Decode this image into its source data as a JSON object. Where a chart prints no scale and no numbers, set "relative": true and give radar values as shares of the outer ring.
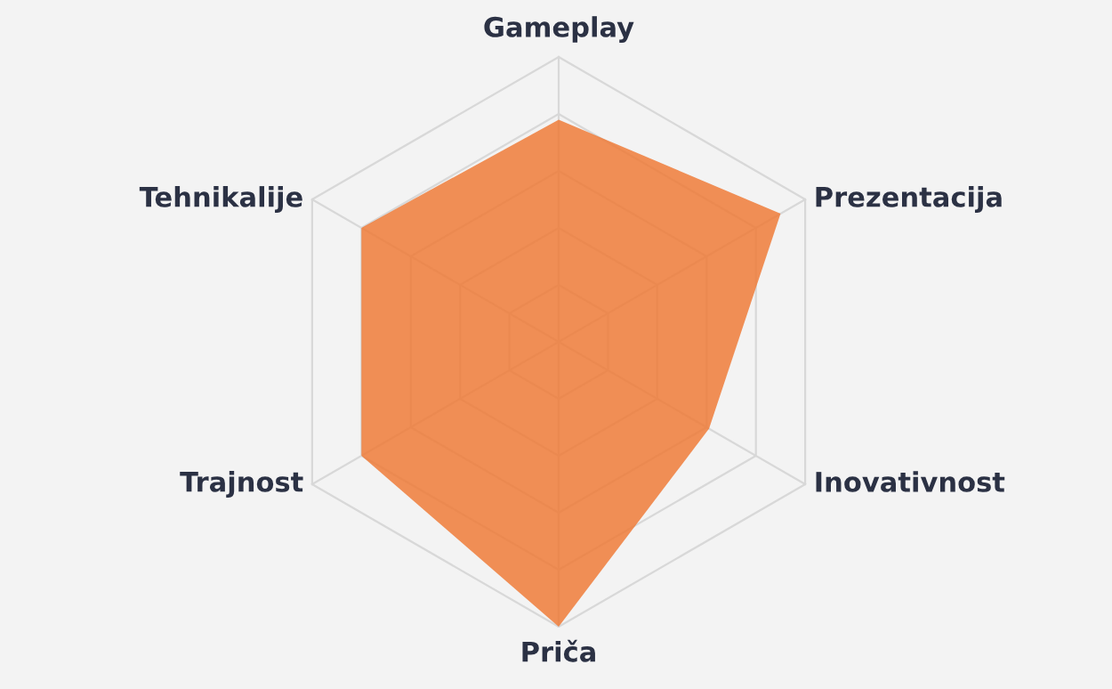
{
  "chart_data": {
    "type": "radar",
    "relative": true,
    "grid": true,
    "categories": [
      "Gameplay",
      "Prezentacija",
      "Inovativnost",
      "Priča",
      "Trajnost",
      "Tehnikalije"
    ],
    "series": [
      {
        "color": "#ef7b38",
        "values": [
          0.78,
          0.9,
          0.61,
          1.0,
          0.8,
          0.8
        ]
      }
    ]
  }
}
